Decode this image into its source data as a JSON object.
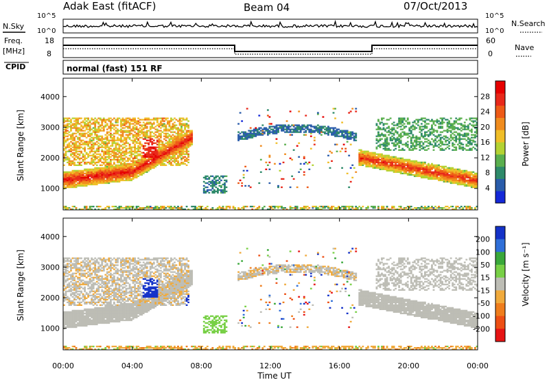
{
  "header": {
    "station": "Adak East (fitACF)",
    "beam": "Beam 04",
    "date": "07/Oct/2013"
  },
  "noise_panel": {
    "left_label": "N.Sky",
    "right_label": "N.Search",
    "left_ticks": [
      "10^5",
      "10^0"
    ],
    "right_ticks": [
      "10^5",
      "10^0"
    ]
  },
  "freq_panel": {
    "left_label_1": "Freq.",
    "left_label_2": "[MHz]",
    "left_ticks": [
      "18",
      "8"
    ],
    "right_label": "Nave",
    "right_ticks": [
      "60",
      "0"
    ]
  },
  "cpid": {
    "label": "CPID",
    "mode": "normal (fast) 151 RF"
  },
  "colors": {
    "power": [
      "#1428d8",
      "#2a5caa",
      "#2e8a6a",
      "#5aaf4e",
      "#b4d232",
      "#f0be28",
      "#f08c1e",
      "#ee5a16",
      "#e8281a",
      "#e60000"
    ],
    "velocity": [
      "#1432c8",
      "#2f6fd8",
      "#3aa83a",
      "#78d046",
      "#bdbdb5",
      "#f0aa3c",
      "#ef7d1c",
      "#ed4f14",
      "#e61414"
    ]
  },
  "chart_data": [
    {
      "type": "heatmap",
      "title": "Power",
      "ylabel": "Slant Range [km]",
      "xlabel": "Time UT",
      "x_ticks": [
        "00:00",
        "04:00",
        "08:00",
        "12:00",
        "16:00",
        "20:00",
        "00:00"
      ],
      "y_ticks": [
        "1000",
        "2000",
        "3000",
        "4000"
      ],
      "ylim": [
        300,
        4600
      ],
      "xlim_hours": [
        0,
        24
      ],
      "colorbar": {
        "label": "Power [dB]",
        "ticks": [
          "4",
          "8",
          "12",
          "16",
          "20",
          "24",
          "28"
        ],
        "range": [
          0,
          32
        ]
      }
    },
    {
      "type": "heatmap",
      "title": "Velocity",
      "ylabel": "Slant Range [km]",
      "xlabel": "Time UT",
      "x_ticks": [
        "00:00",
        "04:00",
        "08:00",
        "12:00",
        "16:00",
        "20:00",
        "00:00"
      ],
      "y_ticks": [
        "1000",
        "2000",
        "3000",
        "4000"
      ],
      "ylim": [
        300,
        4600
      ],
      "xlim_hours": [
        0,
        24
      ],
      "colorbar": {
        "label": "Velocity [m s⁻¹]",
        "ticks": [
          "200",
          "100",
          "50",
          "15",
          "-15",
          "-50",
          "-100",
          "-200"
        ]
      }
    }
  ],
  "footer": {
    "x_title": "Time UT"
  }
}
